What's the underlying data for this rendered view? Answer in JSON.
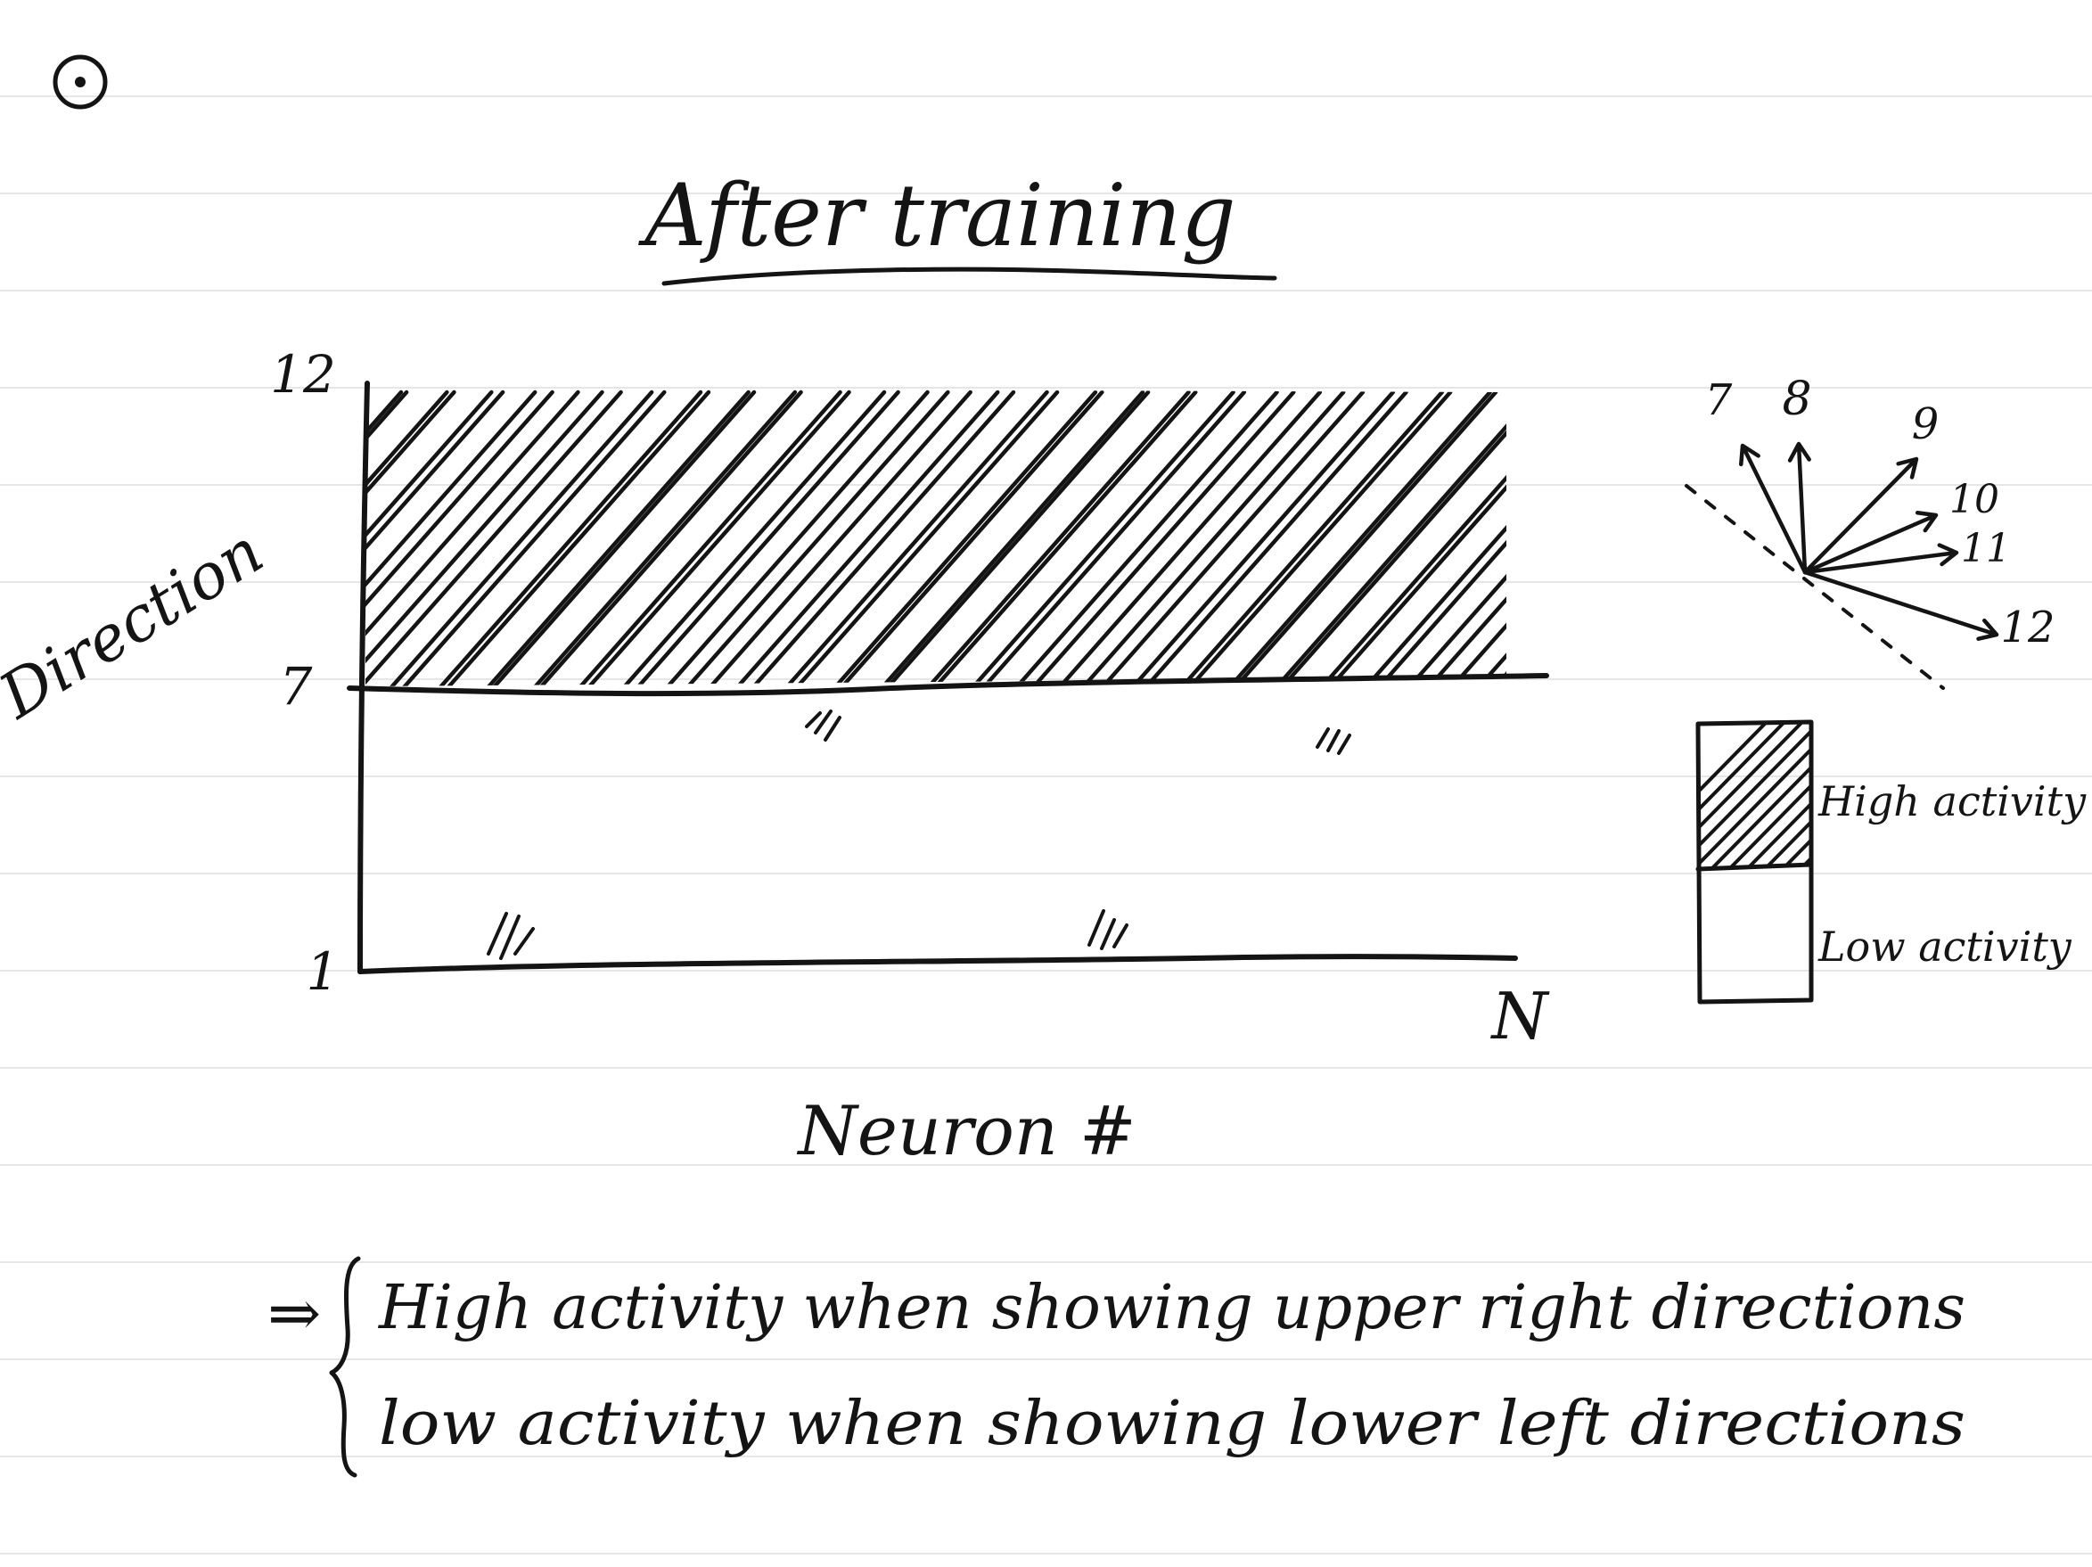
{
  "title": "After training",
  "axes": {
    "ylabel": "Direction",
    "xlabel": "Neuron #",
    "y_ticks": [
      "12",
      "7",
      "1"
    ],
    "x_end": "N"
  },
  "chart_data": {
    "type": "heatmap",
    "title": "After training",
    "xlabel": "Neuron #",
    "ylabel": "Direction",
    "x_range": [
      "1",
      "N"
    ],
    "y_ticks": [
      1,
      7,
      12
    ],
    "regions": [
      {
        "from_direction": 7,
        "to_direction": 12,
        "activity": "High activity"
      },
      {
        "from_direction": 1,
        "to_direction": 7,
        "activity": "Low activity"
      }
    ]
  },
  "direction_labels": [
    "7",
    "8",
    "9",
    "10",
    "11",
    "12"
  ],
  "legend": {
    "high": "High activity",
    "low": "Low activity"
  },
  "conclusion": {
    "arrow": "⇒",
    "line1": "High activity when showing upper right directions",
    "line2": "low activity when showing lower left directions"
  },
  "marker": "⊙",
  "colors": {
    "ink": "#141414",
    "rule_line": "#e6e6e6",
    "paper": "#ffffff"
  }
}
